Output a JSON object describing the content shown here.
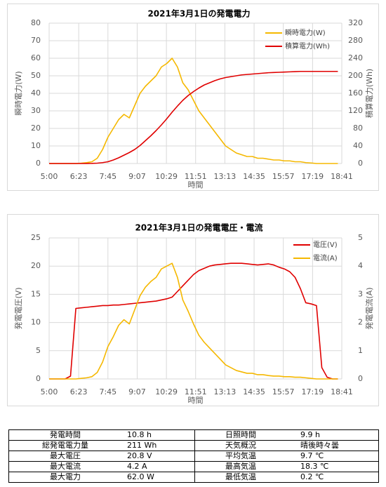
{
  "chart_data": [
    {
      "type": "line",
      "title": "2021年3月1日の発電電力",
      "x": [
        300,
        315,
        330,
        345,
        360,
        375,
        390,
        405,
        420,
        435,
        450,
        465,
        480,
        495,
        510,
        525,
        540,
        555,
        570,
        585,
        600,
        615,
        630,
        645,
        660,
        675,
        690,
        705,
        720,
        735,
        750,
        765,
        780,
        795,
        810,
        825,
        840,
        855,
        870,
        885,
        900,
        915,
        930,
        945,
        960,
        975,
        990,
        1005,
        1020,
        1035,
        1050,
        1065,
        1080,
        1095,
        1110
      ],
      "xlim": [
        300,
        1121
      ],
      "xticks": [
        {
          "value": 300,
          "label": "5:00"
        },
        {
          "value": 383,
          "label": "6:23"
        },
        {
          "value": 465,
          "label": "7:45"
        },
        {
          "value": 547,
          "label": "9:07"
        },
        {
          "value": 629,
          "label": "10:29"
        },
        {
          "value": 711,
          "label": "11:51"
        },
        {
          "value": 793,
          "label": "13:13"
        },
        {
          "value": 875,
          "label": "14:35"
        },
        {
          "value": 957,
          "label": "15:57"
        },
        {
          "value": 1039,
          "label": "17:19"
        },
        {
          "value": 1121,
          "label": "18:41"
        }
      ],
      "xlabel": "時間",
      "ylabel": "瞬時電力(W)",
      "y2label": "積算電力(Wh)",
      "ylim": [
        0,
        80
      ],
      "yticks": [
        0,
        10,
        20,
        30,
        40,
        50,
        60,
        70,
        80
      ],
      "y2lim": [
        0,
        320
      ],
      "y2ticks": [
        0,
        40,
        80,
        120,
        160,
        200,
        240,
        280,
        320
      ],
      "grid": true,
      "legend": "upper right",
      "series": [
        {
          "name": "瞬時電力(W)",
          "color": "#f5b800",
          "values": [
            0,
            0,
            0,
            0,
            0,
            0,
            0.2,
            0.5,
            1,
            3,
            8,
            15,
            20,
            25,
            28,
            26,
            33,
            40,
            44,
            47,
            50,
            55,
            57,
            60,
            55,
            46,
            42,
            36,
            30,
            26,
            22,
            18,
            14,
            10,
            8,
            6,
            5,
            4,
            4,
            3,
            3,
            2.5,
            2,
            2,
            1.5,
            1.5,
            1,
            1,
            0.5,
            0.3,
            0,
            0,
            0,
            0,
            0
          ]
        },
        {
          "name": "積算電力(Wh)",
          "color": "#e00000",
          "axis": "y2",
          "values": [
            0,
            0,
            0,
            0,
            0,
            0,
            0,
            0.1,
            0.3,
            0.8,
            2,
            4,
            8,
            13,
            19,
            25,
            32,
            41,
            52,
            63,
            75,
            88,
            102,
            117,
            131,
            144,
            155,
            164,
            172,
            179,
            184,
            189,
            193,
            196,
            198,
            200,
            202,
            203,
            204,
            205,
            206,
            207,
            207.5,
            208,
            208.5,
            209,
            209.5,
            210,
            210,
            210,
            210,
            210,
            210,
            210,
            210
          ]
        }
      ]
    },
    {
      "type": "line",
      "title": "2021年3月1日の発電電圧・電流",
      "x": [
        300,
        315,
        330,
        345,
        360,
        375,
        390,
        405,
        420,
        435,
        450,
        465,
        480,
        495,
        510,
        525,
        540,
        555,
        570,
        585,
        600,
        615,
        630,
        645,
        660,
        675,
        690,
        705,
        720,
        735,
        750,
        765,
        780,
        795,
        810,
        825,
        840,
        855,
        870,
        885,
        900,
        915,
        930,
        945,
        960,
        975,
        990,
        1005,
        1020,
        1035,
        1050,
        1065,
        1080,
        1095,
        1110
      ],
      "xlim": [
        300,
        1121
      ],
      "xticks": [
        {
          "value": 300,
          "label": "5:00"
        },
        {
          "value": 383,
          "label": "6:23"
        },
        {
          "value": 465,
          "label": "7:45"
        },
        {
          "value": 547,
          "label": "9:07"
        },
        {
          "value": 629,
          "label": "10:29"
        },
        {
          "value": 711,
          "label": "11:51"
        },
        {
          "value": 793,
          "label": "13:13"
        },
        {
          "value": 875,
          "label": "14:35"
        },
        {
          "value": 957,
          "label": "15:57"
        },
        {
          "value": 1039,
          "label": "17:19"
        },
        {
          "value": 1121,
          "label": "18:41"
        }
      ],
      "xlabel": "時間",
      "ylabel": "発電電圧(V)",
      "y2label": "発電電流(A)",
      "ylim": [
        0,
        25
      ],
      "yticks": [
        0,
        5,
        10,
        15,
        20,
        25
      ],
      "y2lim": [
        0,
        5
      ],
      "y2ticks": [
        0,
        1,
        2,
        3,
        4,
        5
      ],
      "grid": true,
      "legend": "upper right",
      "series": [
        {
          "name": "電圧(V)",
          "color": "#e00000",
          "values": [
            0,
            0,
            0,
            0,
            0.5,
            12.5,
            12.6,
            12.7,
            12.8,
            12.9,
            13,
            13,
            13.1,
            13.1,
            13.2,
            13.3,
            13.4,
            13.5,
            13.6,
            13.7,
            13.8,
            14,
            14.2,
            14.5,
            15.5,
            16.5,
            17.5,
            18.5,
            19.2,
            19.6,
            20,
            20.2,
            20.3,
            20.4,
            20.5,
            20.5,
            20.5,
            20.4,
            20.3,
            20.2,
            20.3,
            20.4,
            20.2,
            19.8,
            19.5,
            19,
            18,
            16,
            13.5,
            13.3,
            13,
            2,
            0.3,
            0,
            0
          ]
        },
        {
          "name": "電流(A)",
          "color": "#f5b800",
          "axis": "y2",
          "values": [
            0,
            0,
            0,
            0,
            0,
            0,
            0.02,
            0.04,
            0.08,
            0.23,
            0.6,
            1.15,
            1.5,
            1.9,
            2.1,
            1.95,
            2.45,
            2.95,
            3.25,
            3.45,
            3.6,
            3.9,
            4,
            4.1,
            3.6,
            2.8,
            2.4,
            1.95,
            1.55,
            1.3,
            1.1,
            0.9,
            0.7,
            0.5,
            0.4,
            0.3,
            0.25,
            0.2,
            0.2,
            0.15,
            0.15,
            0.12,
            0.1,
            0.1,
            0.08,
            0.08,
            0.06,
            0.06,
            0.04,
            0.02,
            0,
            0,
            0,
            0,
            0
          ]
        }
      ]
    }
  ],
  "table": {
    "rows": [
      [
        "発電時間",
        "10.8 h",
        "日照時間",
        "9.9 h"
      ],
      [
        "総発電電力量",
        "211 Wh",
        "天気概況",
        "晴後時々曇"
      ],
      [
        "最大電圧",
        "20.8 V",
        "平均気温",
        "9.7 ℃"
      ],
      [
        "最大電流",
        "4.2 A",
        "最高気温",
        "18.3 ℃"
      ],
      [
        "最大電力",
        "62.0 W",
        "最低気温",
        "0.2 ℃"
      ]
    ]
  }
}
